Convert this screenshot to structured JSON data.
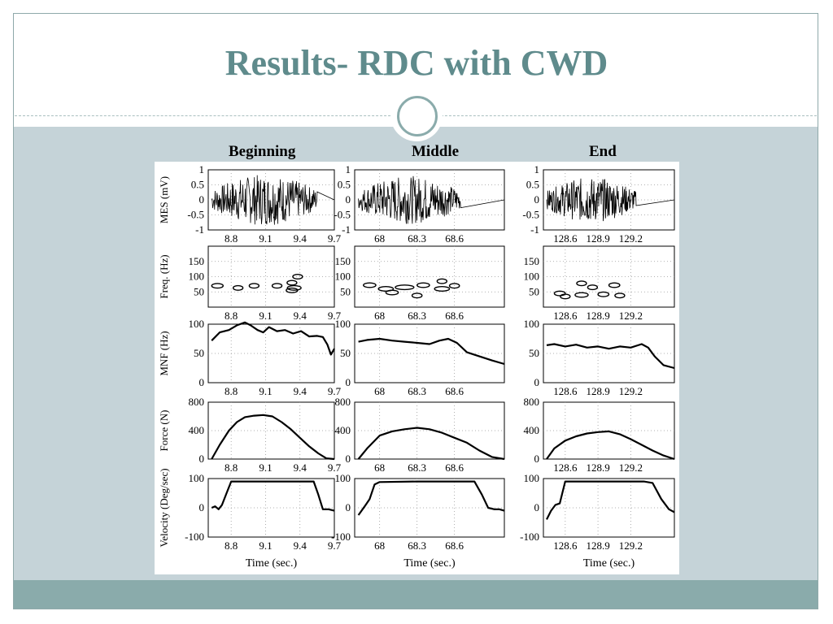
{
  "slide": {
    "title": "Results- RDC with CWD",
    "column_headers": [
      "Beginning",
      "Middle",
      "End"
    ]
  },
  "colors": {
    "title": "#5f8b8c",
    "content_band": "#c5d3d8",
    "bottom_band": "#8aabab",
    "ornament": "#8aabab"
  },
  "chart_data": {
    "type": "line",
    "rows": [
      {
        "key": "mes",
        "ylabel": "MES (mV)",
        "ylim": [
          -1,
          1
        ],
        "yticks": [
          "1",
          "0.5",
          "0",
          "-0.5",
          "-1"
        ],
        "plot": "emg"
      },
      {
        "key": "freq",
        "ylabel": "Freq. (Hz)",
        "ylim": [
          0,
          200
        ],
        "yticks": [
          "150",
          "100",
          "50"
        ],
        "plot": "contour"
      },
      {
        "key": "mnf",
        "ylabel": "MNF (Hz)",
        "ylim": [
          0,
          100
        ],
        "yticks": [
          "100",
          "50",
          "0"
        ],
        "plot": "line"
      },
      {
        "key": "force",
        "ylabel": "Force (N)",
        "ylim": [
          0,
          800
        ],
        "yticks": [
          "800",
          "400",
          "0"
        ],
        "plot": "line"
      },
      {
        "key": "velocity",
        "ylabel": "Velocity (Deg/sec)",
        "ylim": [
          -100,
          100
        ],
        "yticks": [
          "100",
          "0",
          "-100"
        ],
        "plot": "line"
      }
    ],
    "columns": [
      {
        "name": "Beginning",
        "xlim": [
          8.6,
          9.7
        ],
        "xticks": [
          "8.8",
          "9.1",
          "9.4",
          "9.7"
        ],
        "mnf": {
          "x": [
            8.63,
            8.7,
            8.78,
            8.85,
            8.92,
            8.97,
            9.03,
            9.08,
            9.13,
            9.2,
            9.27,
            9.34,
            9.41,
            9.48,
            9.55,
            9.6,
            9.64,
            9.67,
            9.7
          ],
          "y": [
            72,
            86,
            90,
            98,
            103,
            98,
            90,
            86,
            95,
            88,
            90,
            84,
            88,
            79,
            80,
            78,
            65,
            48,
            58
          ]
        },
        "force": {
          "x": [
            8.63,
            8.7,
            8.78,
            8.85,
            8.92,
            9.0,
            9.08,
            9.16,
            9.24,
            9.32,
            9.4,
            9.48,
            9.56,
            9.63,
            9.7
          ],
          "y": [
            0,
            200,
            400,
            520,
            590,
            610,
            620,
            600,
            520,
            420,
            300,
            180,
            80,
            10,
            0
          ]
        },
        "velocity": {
          "x": [
            8.63,
            8.66,
            8.69,
            8.72,
            8.76,
            8.8,
            9.0,
            9.3,
            9.52,
            9.56,
            9.6,
            9.65,
            9.7
          ],
          "y": [
            0,
            5,
            -5,
            10,
            50,
            90,
            90,
            90,
            90,
            45,
            -5,
            -5,
            -10
          ]
        },
        "emg_segments": [
          [
            8.63,
            9.55,
            0.85
          ]
        ],
        "contours": [
          [
            8.68,
            70,
            0.1
          ],
          [
            8.86,
            63,
            0.08
          ],
          [
            9.0,
            70,
            0.06
          ],
          [
            9.2,
            70,
            0.08
          ],
          [
            9.33,
            80,
            0.08
          ],
          [
            9.35,
            63,
            0.12
          ],
          [
            9.38,
            100,
            0.06
          ],
          [
            9.33,
            55,
            0.1
          ]
        ]
      },
      {
        "name": "Middle",
        "xlim": [
          67.8,
          69.0
        ],
        "xticks": [
          "68",
          "68.3",
          "68.6"
        ],
        "mnf": {
          "x": [
            67.83,
            67.9,
            68.0,
            68.1,
            68.2,
            68.3,
            68.4,
            68.48,
            68.55,
            68.62,
            68.7,
            68.8,
            68.9,
            69.0
          ],
          "y": [
            70,
            73,
            75,
            72,
            70,
            68,
            66,
            72,
            75,
            68,
            52,
            45,
            38,
            32
          ]
        },
        "force": {
          "x": [
            67.83,
            67.9,
            68.0,
            68.1,
            68.2,
            68.3,
            68.4,
            68.5,
            68.6,
            68.7,
            68.8,
            68.9,
            69.0
          ],
          "y": [
            0,
            150,
            330,
            390,
            420,
            440,
            420,
            370,
            300,
            230,
            120,
            30,
            0
          ]
        },
        "velocity": {
          "x": [
            67.83,
            67.88,
            67.92,
            67.96,
            68.0,
            68.3,
            68.6,
            68.76,
            68.82,
            68.87,
            68.92,
            68.96,
            69.0
          ],
          "y": [
            -25,
            5,
            30,
            80,
            88,
            90,
            90,
            90,
            45,
            0,
            -5,
            -5,
            -10
          ]
        },
        "emg_segments": [
          [
            67.83,
            68.65,
            0.8
          ]
        ],
        "contours": [
          [
            67.92,
            72,
            0.1
          ],
          [
            68.05,
            60,
            0.12
          ],
          [
            68.2,
            65,
            0.15
          ],
          [
            68.35,
            72,
            0.1
          ],
          [
            68.5,
            60,
            0.12
          ],
          [
            68.6,
            70,
            0.08
          ],
          [
            68.1,
            48,
            0.1
          ],
          [
            68.3,
            38,
            0.08
          ],
          [
            68.5,
            85,
            0.06
          ]
        ]
      },
      {
        "name": "End",
        "xlim": [
          128.4,
          129.6
        ],
        "xticks": [
          "128.6",
          "128.9",
          "129.2"
        ],
        "mnf": {
          "x": [
            128.43,
            128.5,
            128.6,
            128.7,
            128.8,
            128.9,
            129.0,
            129.1,
            129.2,
            129.3,
            129.36,
            129.42,
            129.5,
            129.6
          ],
          "y": [
            64,
            66,
            62,
            65,
            60,
            62,
            58,
            62,
            60,
            66,
            60,
            45,
            30,
            25
          ]
        },
        "force": {
          "x": [
            128.43,
            128.5,
            128.6,
            128.7,
            128.8,
            128.9,
            129.0,
            129.1,
            129.2,
            129.3,
            129.4,
            129.5,
            129.6
          ],
          "y": [
            0,
            150,
            260,
            320,
            360,
            380,
            390,
            350,
            280,
            200,
            120,
            50,
            0
          ]
        },
        "velocity": {
          "x": [
            128.43,
            128.47,
            128.51,
            128.55,
            128.6,
            128.9,
            129.2,
            129.32,
            129.4,
            129.48,
            129.55,
            129.6
          ],
          "y": [
            -40,
            -10,
            10,
            15,
            90,
            90,
            90,
            90,
            85,
            30,
            -5,
            -15
          ]
        },
        "emg_segments": [
          [
            128.43,
            129.25,
            0.75
          ]
        ],
        "contours": [
          [
            128.55,
            45,
            0.1
          ],
          [
            128.75,
            40,
            0.12
          ],
          [
            128.95,
            42,
            0.1
          ],
          [
            129.1,
            38,
            0.08
          ],
          [
            128.6,
            35,
            0.08
          ],
          [
            128.85,
            65,
            0.08
          ],
          [
            129.05,
            72,
            0.1
          ],
          [
            128.75,
            78,
            0.06
          ]
        ]
      }
    ],
    "xlabel": "Time (sec.)",
    "grid": "dotted"
  }
}
